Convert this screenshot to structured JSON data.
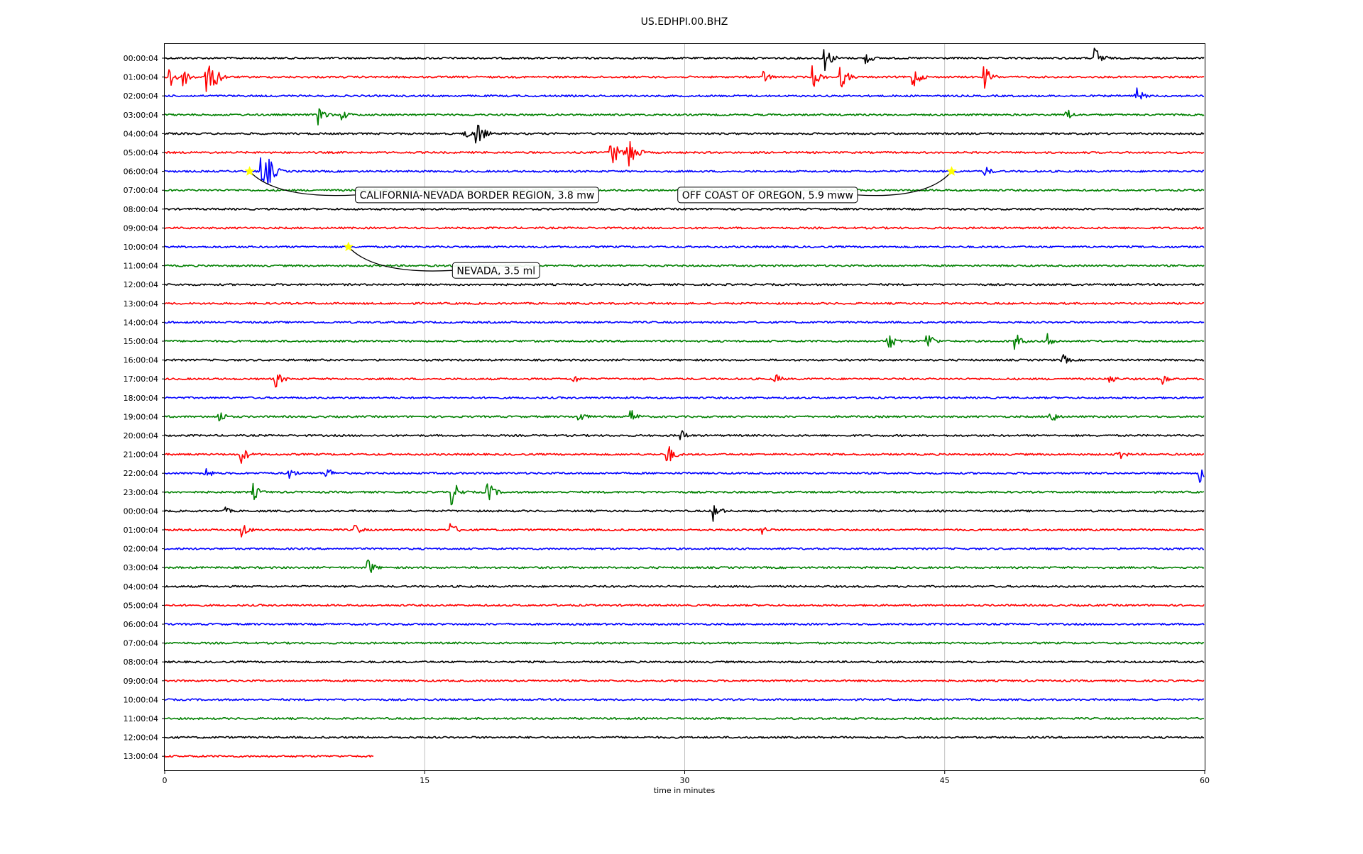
{
  "chart_data": {
    "type": "line",
    "title": "US.EDHPI.00.BHZ",
    "xlabel": "time in minutes",
    "ylabel": "",
    "xlim": [
      0,
      60
    ],
    "x_ticks": [
      "0",
      "15",
      "30",
      "45",
      "60"
    ],
    "x_tick_values": [
      0,
      15,
      30,
      45,
      60
    ],
    "grid": "vertical",
    "line_colors": [
      "#000000",
      "#ff0000",
      "#0000ff",
      "#008000"
    ],
    "row_labels": [
      "00:00:04",
      "01:00:04",
      "02:00:04",
      "03:00:04",
      "04:00:04",
      "05:00:04",
      "06:00:04",
      "07:00:04",
      "08:00:04",
      "09:00:04",
      "10:00:04",
      "11:00:04",
      "12:00:04",
      "13:00:04",
      "14:00:04",
      "15:00:04",
      "16:00:04",
      "17:00:04",
      "18:00:04",
      "19:00:04",
      "20:00:04",
      "21:00:04",
      "22:00:04",
      "23:00:04",
      "00:00:04",
      "01:00:04",
      "02:00:04",
      "03:00:04",
      "04:00:04",
      "05:00:04",
      "06:00:04",
      "07:00:04",
      "08:00:04",
      "09:00:04",
      "10:00:04",
      "11:00:04",
      "12:00:04",
      "13:00:04"
    ],
    "last_row_end_minute": 12.1,
    "events": [
      {
        "row": 6,
        "minute": 4.9,
        "label": "CALIFORNIA-NEVADA BORDER REGION, 3.8 mw",
        "label_minute": 11,
        "label_row": 7.25
      },
      {
        "row": 6,
        "minute": 45.4,
        "label": "OFF COAST OF OREGON, 5.9 mww",
        "label_minute": 29.6,
        "label_row": 7.25
      },
      {
        "row": 10,
        "minute": 10.6,
        "label": "NEVADA, 3.5 ml",
        "label_minute": 16.6,
        "label_row": 11.25
      }
    ],
    "bursts": [
      {
        "row": 0,
        "minute": 38.1,
        "amp": 1.0
      },
      {
        "row": 0,
        "minute": 40.5,
        "amp": 0.5
      },
      {
        "row": 0,
        "minute": 53.7,
        "amp": 1.0
      },
      {
        "row": 1,
        "minute": 0.3,
        "amp": 1.1
      },
      {
        "row": 1,
        "minute": 1.1,
        "amp": 0.8
      },
      {
        "row": 1,
        "minute": 2.4,
        "amp": 1.4
      },
      {
        "row": 1,
        "minute": 2.9,
        "amp": 0.9
      },
      {
        "row": 1,
        "minute": 34.6,
        "amp": 0.5
      },
      {
        "row": 1,
        "minute": 37.4,
        "amp": 0.9
      },
      {
        "row": 1,
        "minute": 39.0,
        "amp": 1.0
      },
      {
        "row": 1,
        "minute": 43.2,
        "amp": 0.9
      },
      {
        "row": 1,
        "minute": 47.3,
        "amp": 0.9
      },
      {
        "row": 2,
        "minute": 56.0,
        "amp": 0.8
      },
      {
        "row": 3,
        "minute": 8.9,
        "amp": 0.8
      },
      {
        "row": 3,
        "minute": 10.2,
        "amp": 0.5
      },
      {
        "row": 3,
        "minute": 52.0,
        "amp": 0.6
      },
      {
        "row": 4,
        "minute": 17.3,
        "amp": 0.5
      },
      {
        "row": 4,
        "minute": 18.0,
        "amp": 1.2
      },
      {
        "row": 5,
        "minute": 25.7,
        "amp": 1.5
      },
      {
        "row": 5,
        "minute": 26.7,
        "amp": 1.9
      },
      {
        "row": 6,
        "minute": 5.6,
        "amp": 1.3
      },
      {
        "row": 6,
        "minute": 6.0,
        "amp": 1.2
      },
      {
        "row": 6,
        "minute": 47.3,
        "amp": 0.5
      },
      {
        "row": 15,
        "minute": 41.7,
        "amp": 0.9
      },
      {
        "row": 15,
        "minute": 44.0,
        "amp": 0.8
      },
      {
        "row": 15,
        "minute": 49.1,
        "amp": 0.7
      },
      {
        "row": 15,
        "minute": 51.0,
        "amp": 0.6
      },
      {
        "row": 16,
        "minute": 51.8,
        "amp": 0.5
      },
      {
        "row": 17,
        "minute": 6.4,
        "amp": 0.7
      },
      {
        "row": 17,
        "minute": 23.6,
        "amp": 0.4
      },
      {
        "row": 17,
        "minute": 35.2,
        "amp": 0.5
      },
      {
        "row": 17,
        "minute": 54.4,
        "amp": 0.6
      },
      {
        "row": 17,
        "minute": 57.6,
        "amp": 0.5
      },
      {
        "row": 19,
        "minute": 3.1,
        "amp": 0.6
      },
      {
        "row": 19,
        "minute": 23.9,
        "amp": 0.5
      },
      {
        "row": 19,
        "minute": 26.9,
        "amp": 0.6
      },
      {
        "row": 19,
        "minute": 51.0,
        "amp": 0.8
      },
      {
        "row": 20,
        "minute": 29.8,
        "amp": 0.5
      },
      {
        "row": 21,
        "minute": 4.4,
        "amp": 0.8
      },
      {
        "row": 21,
        "minute": 29.0,
        "amp": 0.9
      },
      {
        "row": 21,
        "minute": 55.0,
        "amp": 0.6
      },
      {
        "row": 22,
        "minute": 2.3,
        "amp": 0.6
      },
      {
        "row": 22,
        "minute": 7.2,
        "amp": 0.5
      },
      {
        "row": 22,
        "minute": 9.3,
        "amp": 0.6
      },
      {
        "row": 22,
        "minute": 59.7,
        "amp": 0.8
      },
      {
        "row": 23,
        "minute": 5.1,
        "amp": 0.7
      },
      {
        "row": 23,
        "minute": 16.6,
        "amp": 1.0
      },
      {
        "row": 23,
        "minute": 18.6,
        "amp": 1.0
      },
      {
        "row": 24,
        "minute": 3.4,
        "amp": 0.4
      },
      {
        "row": 24,
        "minute": 31.6,
        "amp": 0.9
      },
      {
        "row": 25,
        "minute": 4.5,
        "amp": 0.6
      },
      {
        "row": 25,
        "minute": 11.0,
        "amp": 0.5
      },
      {
        "row": 25,
        "minute": 16.5,
        "amp": 0.6
      },
      {
        "row": 25,
        "minute": 34.4,
        "amp": 0.5
      },
      {
        "row": 27,
        "minute": 11.7,
        "amp": 0.8
      }
    ]
  }
}
